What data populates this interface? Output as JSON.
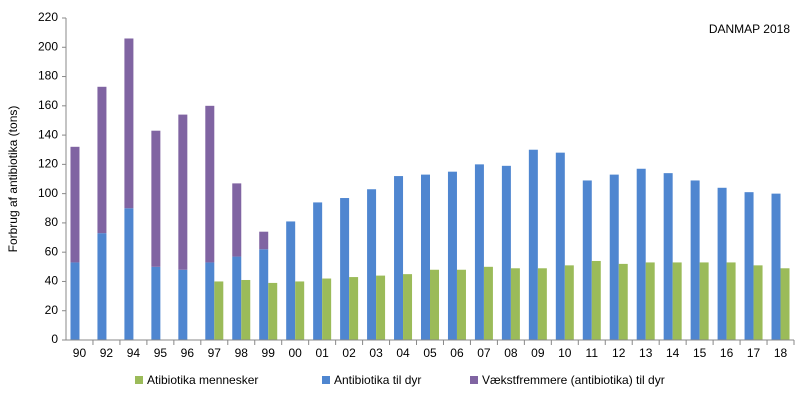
{
  "chart_data": {
    "type": "bar",
    "annotation": "DANMAP 2018",
    "y_label": "Forbrug af antibiotika (tons)",
    "categories": [
      "90",
      "92",
      "94",
      "95",
      "96",
      "97",
      "98",
      "99",
      "00",
      "01",
      "02",
      "03",
      "04",
      "05",
      "06",
      "07",
      "08",
      "09",
      "10",
      "11",
      "12",
      "13",
      "14",
      "15",
      "16",
      "17",
      "18"
    ],
    "series": [
      {
        "name": "Atibiotika mennesker",
        "color": "#9bbb59",
        "values": [
          null,
          null,
          null,
          null,
          null,
          40,
          41,
          39,
          40,
          42,
          43,
          44,
          45,
          48,
          48,
          50,
          49,
          49,
          51,
          54,
          52,
          53,
          53,
          53,
          53,
          51,
          49
        ]
      },
      {
        "name": "Antibiotika til dyr",
        "color": "#4f86d0",
        "values": [
          53,
          73,
          90,
          50,
          48,
          53,
          57,
          62,
          81,
          94,
          97,
          103,
          112,
          113,
          115,
          120,
          119,
          130,
          128,
          109,
          113,
          117,
          114,
          109,
          104,
          101,
          100
        ]
      },
      {
        "name": "Vækstfremmere (antibiotika) til dyr",
        "color": "#8064a2",
        "values": [
          79,
          100,
          116,
          93,
          106,
          107,
          50,
          12,
          null,
          null,
          null,
          null,
          null,
          null,
          null,
          null,
          null,
          null,
          null,
          null,
          null,
          null,
          null,
          null,
          null,
          null,
          null
        ]
      }
    ],
    "ylim": [
      0,
      220
    ],
    "yticks": [
      0,
      20,
      40,
      60,
      80,
      100,
      120,
      140,
      160,
      180,
      200,
      220
    ],
    "grid": false
  }
}
